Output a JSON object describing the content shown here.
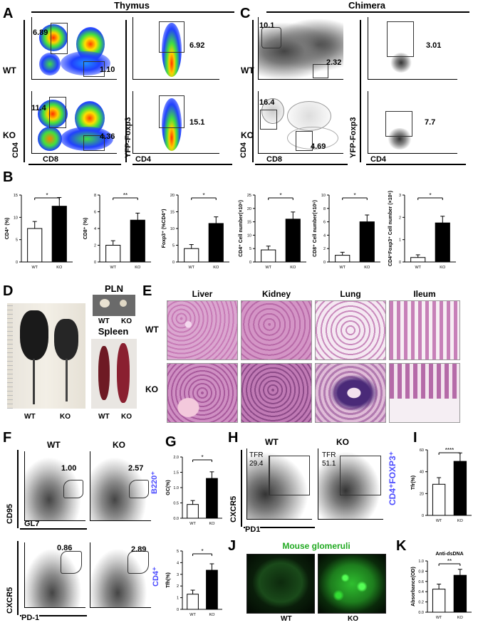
{
  "panels": {
    "A": "A",
    "B": "B",
    "C": "C",
    "D": "D",
    "E": "E",
    "F": "F",
    "G": "G",
    "H": "H",
    "I": "I",
    "J": "J",
    "K": "K"
  },
  "headers": {
    "thymus": "Thymus",
    "chimera": "Chimera"
  },
  "rows": {
    "wt": "WT",
    "ko": "KO"
  },
  "axes": {
    "cd4": "CD4",
    "cd8": "CD8",
    "yfp": "YFP-Foxp3",
    "cd95": "CD95",
    "gl7": "GL7",
    "cxcr5": "CXCR5",
    "pd1": "PD-1",
    "pd1b": "PD1"
  },
  "A": {
    "wt_cd4": "6.89",
    "wt_cd8": "1.10",
    "wt_foxp3": "6.92",
    "ko_cd4": "11.4",
    "ko_cd8": "4.36",
    "ko_foxp3": "15.1"
  },
  "C": {
    "wt_cd4": "10.1",
    "wt_cd8": "2.32",
    "wt_foxp3": "3.01",
    "ko_cd4": "16.4",
    "ko_cd8": "4.69",
    "ko_foxp3": "7.7"
  },
  "B": {
    "charts": [
      {
        "ylabel": "CD4⁺ (%)",
        "sig": "*",
        "ticks": [
          "0",
          "5",
          "10",
          "15"
        ],
        "ymax": 15,
        "wt": 7.5,
        "ko": 12.5
      },
      {
        "ylabel": "CD8⁺ (%)",
        "sig": "**",
        "ticks": [
          "0",
          "2",
          "4",
          "6",
          "8"
        ],
        "ymax": 8,
        "wt": 2.0,
        "ko": 5.0
      },
      {
        "ylabel": "Foxp3⁺ (%CD4⁺)",
        "sig": "*",
        "ticks": [
          "0",
          "5",
          "10",
          "15",
          "20"
        ],
        "ymax": 20,
        "wt": 4.0,
        "ko": 11.5
      },
      {
        "ylabel": "CD4⁺ Cell number(×10⁶)",
        "sig": "*",
        "ticks": [
          "0",
          "5",
          "10",
          "15",
          "20",
          "25"
        ],
        "ymax": 25,
        "wt": 4.5,
        "ko": 16.0
      },
      {
        "ylabel": "CD8⁺ Cell number(×10⁶)",
        "sig": "*",
        "ticks": [
          "0",
          "2",
          "4",
          "6",
          "8",
          "10"
        ],
        "ymax": 10,
        "wt": 1.0,
        "ko": 6.0
      },
      {
        "ylabel": "CD4⁺Foxp3⁺ Cell number (×10⁶)",
        "sig": "*",
        "ticks": [
          "0",
          "1",
          "2",
          "3"
        ],
        "ymax": 3,
        "wt": 0.2,
        "ko": 1.75
      }
    ],
    "xcats": [
      "WT",
      "KO"
    ]
  },
  "D": {
    "pln": "PLN",
    "spleen": "Spleen",
    "wt": "WT",
    "ko": "KO"
  },
  "E": {
    "tissues": [
      "Liver",
      "Kidney",
      "Lung",
      "Ileum"
    ]
  },
  "F": {
    "top_wt": "1.00",
    "top_ko": "2.57",
    "bot_wt": "0.86",
    "bot_ko": "2.89",
    "b220": "B220⁺",
    "cd4p": "CD4⁺"
  },
  "G": [
    {
      "ylabel": "GC(%)",
      "sig": "*",
      "ticks": [
        "0.0",
        "0.5",
        "1.0",
        "1.5",
        "2.0"
      ],
      "ymax": 2.0,
      "wt": 0.45,
      "ko": 1.3
    },
    {
      "ylabel": "Tfh(%)",
      "sig": "*",
      "ticks": [
        "0",
        "1",
        "2",
        "3",
        "4",
        "5"
      ],
      "ymax": 5,
      "wt": 1.3,
      "ko": 3.35
    }
  ],
  "H": {
    "tfr_lbl": "TFR",
    "wt_val": "29.4",
    "ko_val": "51.1",
    "pop": "CD4⁺FOXP3⁺"
  },
  "I": {
    "ylabel": "Tfr(%)",
    "sig": "****",
    "ticks": [
      "0",
      "20",
      "40",
      "60"
    ],
    "ymax": 60,
    "wt": 28.5,
    "ko": 49.5
  },
  "J": {
    "title": "Mouse glomeruli"
  },
  "K": {
    "title": "Anti-dsDNA",
    "ylabel": "Absorbance(OD)",
    "sig": "**",
    "ticks": [
      "0.0",
      "0.2",
      "0.4",
      "0.6",
      "0.8",
      "1.0"
    ],
    "ymax": 1.0,
    "wt": 0.45,
    "ko": 0.72
  },
  "colors": {
    "bar_wt": "#ffffff",
    "bar_ko": "#000000",
    "stain_pink": "#d98fc0",
    "stain_purple": "#6b3f8f",
    "fluor_green": "#33cc33",
    "label_blue": "#4a4aff"
  }
}
